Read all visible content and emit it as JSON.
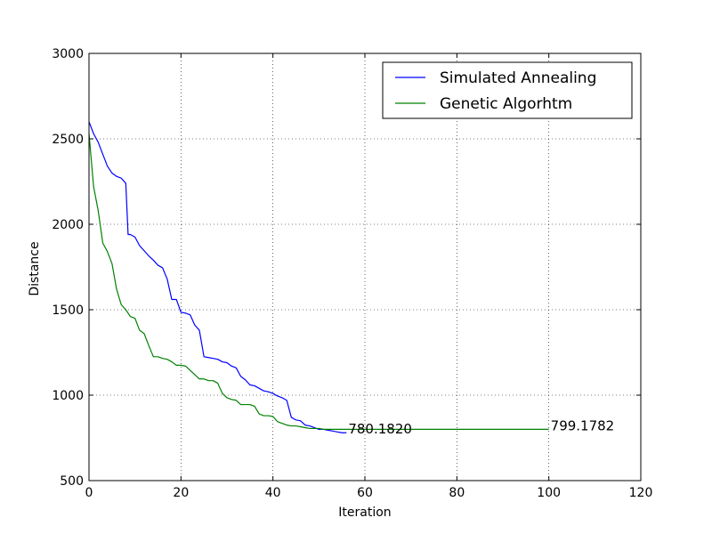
{
  "chart_data": {
    "type": "line",
    "xlabel": "Iteration",
    "ylabel": "Distance",
    "xlim": [
      0,
      120
    ],
    "ylim": [
      500,
      3000
    ],
    "xticks": [
      "0",
      "20",
      "40",
      "60",
      "80",
      "100",
      "120"
    ],
    "yticks": [
      "500",
      "1000",
      "1500",
      "2000",
      "2500",
      "3000"
    ],
    "grid": true,
    "legend_position": "top-right",
    "series": [
      {
        "name": "Simulated Annealing",
        "color": "#0000ff",
        "x": [
          0,
          1,
          2,
          3,
          4,
          5,
          6,
          7,
          8,
          8.5,
          9,
          10,
          11,
          12,
          13,
          14,
          15,
          16,
          17,
          18,
          19,
          20,
          21,
          22,
          23,
          24,
          25,
          26,
          27,
          28,
          29,
          30,
          31,
          32,
          33,
          34,
          35,
          36,
          37,
          38,
          39,
          40,
          41,
          42,
          43,
          44,
          45,
          46,
          47,
          48,
          49,
          50,
          51,
          52,
          53,
          54,
          55,
          56
        ],
        "y": [
          2600,
          2530,
          2480,
          2410,
          2340,
          2300,
          2280,
          2270,
          2240,
          1940,
          1940,
          1925,
          1875,
          1845,
          1815,
          1790,
          1760,
          1745,
          1680,
          1560,
          1560,
          1485,
          1480,
          1470,
          1410,
          1380,
          1225,
          1220,
          1215,
          1210,
          1195,
          1190,
          1170,
          1160,
          1110,
          1090,
          1060,
          1055,
          1040,
          1025,
          1020,
          1010,
          995,
          985,
          970,
          870,
          855,
          850,
          825,
          820,
          810,
          800,
          800,
          795,
          790,
          785,
          780,
          780
        ]
      },
      {
        "name": "Genetic Algorhtm",
        "color": "#008000",
        "x": [
          0,
          1,
          2,
          3,
          4,
          5,
          6,
          7,
          8,
          9,
          10,
          11,
          12,
          13,
          14,
          15,
          16,
          17,
          18,
          19,
          20,
          21,
          22,
          23,
          24,
          25,
          26,
          27,
          28,
          29,
          30,
          31,
          32,
          33,
          34,
          35,
          36,
          37,
          38,
          39,
          40,
          41,
          42,
          43,
          44,
          45,
          46,
          47,
          48,
          49,
          50,
          51,
          52,
          53,
          54,
          55,
          56,
          60,
          70,
          80,
          90,
          100
        ],
        "y": [
          2530,
          2220,
          2080,
          1890,
          1840,
          1770,
          1620,
          1530,
          1500,
          1460,
          1450,
          1380,
          1360,
          1290,
          1225,
          1225,
          1215,
          1210,
          1195,
          1175,
          1175,
          1170,
          1145,
          1120,
          1095,
          1095,
          1085,
          1085,
          1070,
          1010,
          985,
          975,
          970,
          945,
          945,
          945,
          935,
          890,
          880,
          880,
          875,
          845,
          835,
          825,
          820,
          820,
          815,
          810,
          805,
          805,
          805,
          800,
          800,
          800,
          800,
          800,
          800,
          800,
          800,
          800,
          800,
          800
        ]
      }
    ],
    "annotations": [
      {
        "text": "780.1820",
        "x": 56,
        "y": 780
      },
      {
        "text": "799.1782",
        "x": 100,
        "y": 799
      }
    ]
  }
}
